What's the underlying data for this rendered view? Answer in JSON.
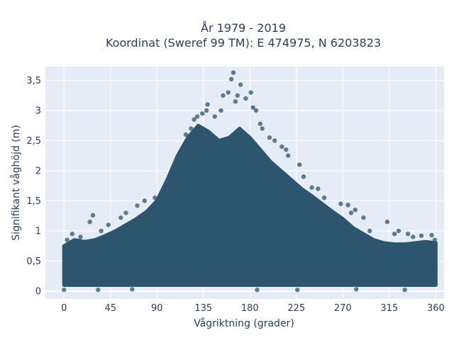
{
  "chart_data": {
    "type": "scatter",
    "title_line1": "År 1979 - 2019",
    "title_line2": "Koordinat (Sweref 99 TM): E 474975, N 6203823",
    "xlabel": "Vågriktning (grader)",
    "ylabel": "Signifikant våghöjd (m)",
    "xlim": [
      -18,
      368
    ],
    "ylim": [
      -0.13,
      3.73
    ],
    "xticks": [
      0,
      45,
      90,
      135,
      180,
      225,
      270,
      315,
      360
    ],
    "xtick_labels": [
      "0",
      "45",
      "90",
      "135",
      "180",
      "225",
      "270",
      "315",
      "360"
    ],
    "yticks": [
      0,
      0.5,
      1,
      1.5,
      2,
      2.5,
      3,
      3.5
    ],
    "ytick_labels": [
      "0",
      "0,5",
      "1",
      "1,5",
      "2",
      "2,5",
      "3",
      "3,5"
    ],
    "grid": true,
    "marker_color": "#2e556e",
    "envelope": {
      "x": [
        0,
        10,
        20,
        30,
        40,
        50,
        60,
        70,
        80,
        90,
        100,
        110,
        120,
        130,
        140,
        150,
        160,
        170,
        180,
        190,
        200,
        210,
        220,
        230,
        240,
        250,
        260,
        270,
        280,
        290,
        300,
        310,
        320,
        330,
        340,
        350,
        360
      ],
      "lower": [
        0.1,
        0.1,
        0.1,
        0.1,
        0.1,
        0.1,
        0.1,
        0.1,
        0.1,
        0.1,
        0.1,
        0.1,
        0.1,
        0.1,
        0.1,
        0.1,
        0.1,
        0.1,
        0.1,
        0.1,
        0.1,
        0.1,
        0.1,
        0.1,
        0.1,
        0.1,
        0.1,
        0.1,
        0.1,
        0.1,
        0.1,
        0.1,
        0.1,
        0.1,
        0.1,
        0.1,
        0.1
      ],
      "upper": [
        0.75,
        0.85,
        0.82,
        0.85,
        0.92,
        1.0,
        1.1,
        1.2,
        1.32,
        1.5,
        1.85,
        2.25,
        2.55,
        2.75,
        2.65,
        2.5,
        2.55,
        2.7,
        2.55,
        2.35,
        2.15,
        2.0,
        1.85,
        1.7,
        1.58,
        1.45,
        1.32,
        1.2,
        1.05,
        0.95,
        0.85,
        0.8,
        0.78,
        0.78,
        0.8,
        0.82,
        0.8
      ]
    },
    "outliers": [
      {
        "x": 3,
        "y": 0.85
      },
      {
        "x": 8,
        "y": 0.95
      },
      {
        "x": 16,
        "y": 0.9
      },
      {
        "x": 25,
        "y": 1.15
      },
      {
        "x": 28,
        "y": 1.26
      },
      {
        "x": 36,
        "y": 1.0
      },
      {
        "x": 43,
        "y": 1.1
      },
      {
        "x": 55,
        "y": 1.22
      },
      {
        "x": 60,
        "y": 1.3
      },
      {
        "x": 71,
        "y": 1.42
      },
      {
        "x": 78,
        "y": 1.5
      },
      {
        "x": 88,
        "y": 1.55
      },
      {
        "x": 100,
        "y": 1.8
      },
      {
        "x": 110,
        "y": 2.2
      },
      {
        "x": 118,
        "y": 2.6
      },
      {
        "x": 123,
        "y": 2.7
      },
      {
        "x": 126,
        "y": 2.85
      },
      {
        "x": 129,
        "y": 2.9
      },
      {
        "x": 134,
        "y": 2.95
      },
      {
        "x": 138,
        "y": 3.0
      },
      {
        "x": 139,
        "y": 3.1
      },
      {
        "x": 146,
        "y": 2.9
      },
      {
        "x": 152,
        "y": 3.0
      },
      {
        "x": 154,
        "y": 3.25
      },
      {
        "x": 159,
        "y": 3.3
      },
      {
        "x": 162,
        "y": 3.52
      },
      {
        "x": 164,
        "y": 3.63
      },
      {
        "x": 166,
        "y": 3.15
      },
      {
        "x": 168,
        "y": 3.25
      },
      {
        "x": 171,
        "y": 3.43
      },
      {
        "x": 176,
        "y": 3.2
      },
      {
        "x": 181,
        "y": 3.3
      },
      {
        "x": 183,
        "y": 3.05
      },
      {
        "x": 186,
        "y": 3.0
      },
      {
        "x": 190,
        "y": 2.78
      },
      {
        "x": 192,
        "y": 2.7
      },
      {
        "x": 199,
        "y": 2.55
      },
      {
        "x": 204,
        "y": 2.5
      },
      {
        "x": 211,
        "y": 2.4
      },
      {
        "x": 215,
        "y": 2.35
      },
      {
        "x": 217,
        "y": 2.25
      },
      {
        "x": 228,
        "y": 2.1
      },
      {
        "x": 232,
        "y": 1.9
      },
      {
        "x": 240,
        "y": 1.72
      },
      {
        "x": 246,
        "y": 1.7
      },
      {
        "x": 252,
        "y": 1.55
      },
      {
        "x": 268,
        "y": 1.45
      },
      {
        "x": 275,
        "y": 1.43
      },
      {
        "x": 278,
        "y": 1.3
      },
      {
        "x": 282,
        "y": 1.35
      },
      {
        "x": 290,
        "y": 1.22
      },
      {
        "x": 296,
        "y": 1.0
      },
      {
        "x": 313,
        "y": 1.15
      },
      {
        "x": 320,
        "y": 0.95
      },
      {
        "x": 324,
        "y": 1.0
      },
      {
        "x": 333,
        "y": 0.95
      },
      {
        "x": 338,
        "y": 0.9
      },
      {
        "x": 346,
        "y": 0.92
      },
      {
        "x": 356,
        "y": 0.93
      },
      {
        "x": 359,
        "y": 0.85
      },
      {
        "x": 0,
        "y": 0.02
      },
      {
        "x": 33,
        "y": 0.02
      },
      {
        "x": 66,
        "y": 0.03
      },
      {
        "x": 187,
        "y": 0.02
      },
      {
        "x": 226,
        "y": 0.02
      },
      {
        "x": 283,
        "y": 0.03
      },
      {
        "x": 330,
        "y": 0.02
      }
    ]
  }
}
